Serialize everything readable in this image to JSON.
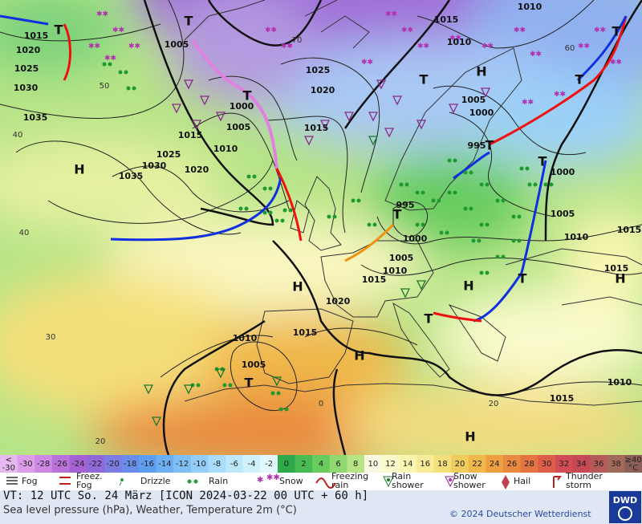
{
  "map": {
    "pressure_labels": [
      "1015",
      "1020",
      "1025",
      "1030",
      "1035",
      "1035",
      "1030",
      "1025",
      "1020",
      "1015",
      "1010",
      "1005",
      "1000",
      "1005",
      "1025",
      "1020",
      "1015",
      "1015",
      "1010",
      "1010",
      "1005",
      "1000",
      "995",
      "1000",
      "1005",
      "1010",
      "1015",
      "1015",
      "995",
      "1000",
      "1005",
      "1010",
      "1015",
      "1020",
      "1015",
      "1010",
      "1005",
      "1015",
      "1010"
    ],
    "high_labels": [
      "H",
      "H",
      "H",
      "H",
      "H",
      "H",
      "H"
    ],
    "low_labels": [
      "T",
      "T",
      "T",
      "T",
      "T",
      "T",
      "T",
      "T",
      "T",
      "T",
      "T",
      "T"
    ],
    "temperature_labels": [
      "70",
      "60",
      "50",
      "40",
      "40",
      "30",
      "20",
      "20",
      "0"
    ]
  },
  "colorbar": {
    "cells": [
      {
        "label": [
          "<",
          "-30"
        ],
        "color": "#e8b8f0"
      },
      {
        "label": "-30",
        "color": "#dc9ee8"
      },
      {
        "label": "-28",
        "color": "#cc88e2"
      },
      {
        "label": "-26",
        "color": "#b872da"
      },
      {
        "label": "-24",
        "color": "#a462d4"
      },
      {
        "label": "-22",
        "color": "#9068d8"
      },
      {
        "label": "-20",
        "color": "#7c7ce2"
      },
      {
        "label": "-18",
        "color": "#6a8cea"
      },
      {
        "label": "-16",
        "color": "#5e9ef0"
      },
      {
        "label": "-14",
        "color": "#6eaef2"
      },
      {
        "label": "-12",
        "color": "#80bef6"
      },
      {
        "label": "-10",
        "color": "#94cef8"
      },
      {
        "label": "-8",
        "color": "#a8dcfa"
      },
      {
        "label": "-6",
        "color": "#bce8fa"
      },
      {
        "label": "-4",
        "color": "#d0f2fc"
      },
      {
        "label": "-2",
        "color": "#e2f8fe"
      },
      {
        "label": "0",
        "color": "#2ea84a"
      },
      {
        "label": "2",
        "color": "#48bc52"
      },
      {
        "label": "4",
        "color": "#68cc5e"
      },
      {
        "label": "6",
        "color": "#90d872"
      },
      {
        "label": "8",
        "color": "#b6e486"
      },
      {
        "label": "10",
        "color": "#f8fae0"
      },
      {
        "label": "12",
        "color": "#fafacc"
      },
      {
        "label": "14",
        "color": "#faf6b2"
      },
      {
        "label": "16",
        "color": "#f8ec96"
      },
      {
        "label": "18",
        "color": "#f4e07a"
      },
      {
        "label": "20",
        "color": "#f0cc5e"
      },
      {
        "label": "22",
        "color": "#f0b84a"
      },
      {
        "label": "24",
        "color": "#eea040"
      },
      {
        "label": "26",
        "color": "#ea8a40"
      },
      {
        "label": "28",
        "color": "#e47442"
      },
      {
        "label": "30",
        "color": "#de5c4a"
      },
      {
        "label": "32",
        "color": "#d24c54"
      },
      {
        "label": "34",
        "color": "#c64a56"
      },
      {
        "label": "36",
        "color": "#b45a58"
      },
      {
        "label": "38",
        "color": "#a26a5a"
      },
      {
        "label": [
          "≥40",
          "°C"
        ],
        "color": "#8c6058"
      }
    ]
  },
  "weather_legend": [
    {
      "label": [
        "Fog"
      ]
    },
    {
      "label": [
        "Freez.",
        "Fog"
      ]
    },
    {
      "label": [
        "Drizzle"
      ]
    },
    {
      "label": [
        "Rain"
      ]
    },
    {
      "label": [
        "Snow"
      ]
    },
    {
      "label": [
        "Freezing",
        "rain"
      ]
    },
    {
      "label": [
        "Rain",
        "shower"
      ]
    },
    {
      "label": [
        "Snow",
        "shower"
      ]
    },
    {
      "label": [
        "Hail"
      ]
    },
    {
      "label": [
        "Thunder",
        "storm"
      ]
    }
  ],
  "footer": {
    "valid_time": "VT: 12 UTC So.  24 März [ICON 2024-03-22  00 UTC + 60 h]",
    "description": "Sea level pressure (hPa), Weather, Temperature 2m (°C)",
    "copyright": "© 2024 Deutscher Wetterdienst",
    "logo": "DWD"
  }
}
